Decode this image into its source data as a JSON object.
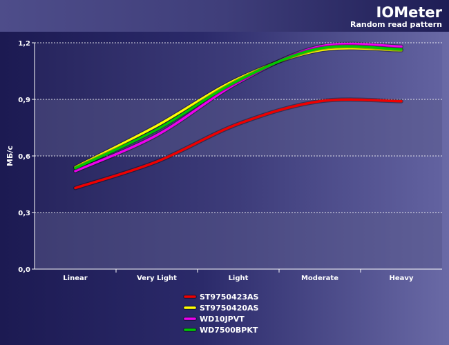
{
  "header": {
    "title": "IOMeter",
    "subtitle": "Random read pattern"
  },
  "chart_data": {
    "type": "line",
    "title": "IOMeter",
    "subtitle": "Random read pattern",
    "xlabel": "",
    "ylabel": "МБ/с",
    "categories": [
      "Linear",
      "Very Light",
      "Light",
      "Moderate",
      "Heavy"
    ],
    "y_ticks": [
      "0,0",
      "0,3",
      "0,6",
      "0,9",
      "1,2"
    ],
    "ylim": [
      0,
      1.2
    ],
    "grid": true,
    "legend_position": "bottom",
    "series": [
      {
        "name": "ST9750423AS",
        "color": "#ee0000",
        "values": [
          0.43,
          0.57,
          0.77,
          0.89,
          0.89
        ]
      },
      {
        "name": "ST9750420AS",
        "color": "#ffff00",
        "values": [
          0.54,
          0.76,
          1.01,
          1.16,
          1.16
        ]
      },
      {
        "name": "WD10JPVT",
        "color": "#ee00ee",
        "values": [
          0.52,
          0.71,
          0.99,
          1.18,
          1.18
        ]
      },
      {
        "name": "WD7500BPKT",
        "color": "#00c800",
        "values": [
          0.535,
          0.74,
          1.0,
          1.17,
          1.165
        ]
      }
    ]
  }
}
